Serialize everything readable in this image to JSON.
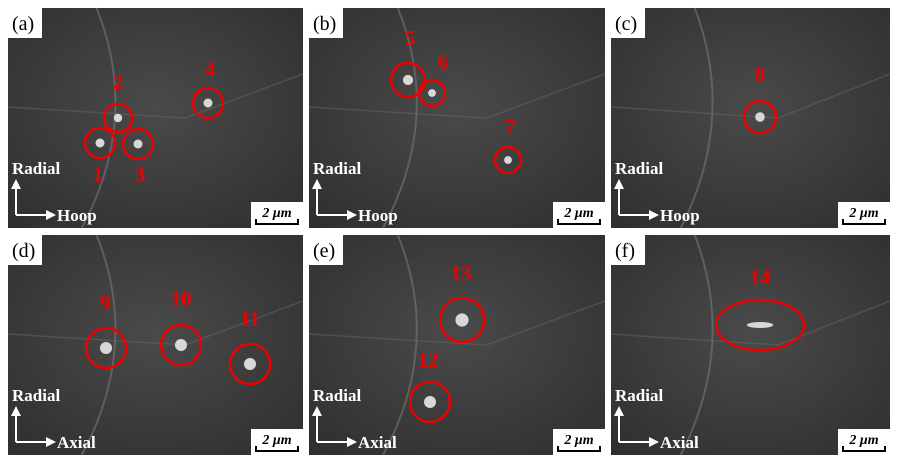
{
  "panels": [
    {
      "label": "(a)",
      "axis_vertical": "Radial",
      "axis_horizontal": "Hoop",
      "scale_bar": "2 μm",
      "markers": [
        {
          "label": "1"
        },
        {
          "label": "2"
        },
        {
          "label": "3"
        },
        {
          "label": "4"
        }
      ]
    },
    {
      "label": "(b)",
      "axis_vertical": "Radial",
      "axis_horizontal": "Hoop",
      "scale_bar": "2 μm",
      "markers": [
        {
          "label": "5"
        },
        {
          "label": "6"
        },
        {
          "label": "7"
        }
      ]
    },
    {
      "label": "(c)",
      "axis_vertical": "Radial",
      "axis_horizontal": "Hoop",
      "scale_bar": "2 μm",
      "markers": [
        {
          "label": "8"
        }
      ]
    },
    {
      "label": "(d)",
      "axis_vertical": "Radial",
      "axis_horizontal": "Axial",
      "scale_bar": "2 μm",
      "markers": [
        {
          "label": "9"
        },
        {
          "label": "10"
        },
        {
          "label": "11"
        }
      ]
    },
    {
      "label": "(e)",
      "axis_vertical": "Radial",
      "axis_horizontal": "Axial",
      "scale_bar": "2 μm",
      "markers": [
        {
          "label": "12"
        },
        {
          "label": "13"
        }
      ]
    },
    {
      "label": "(f)",
      "axis_vertical": "Radial",
      "axis_horizontal": "Axial",
      "scale_bar": "2 μm",
      "markers": [
        {
          "label": "14"
        }
      ]
    }
  ]
}
